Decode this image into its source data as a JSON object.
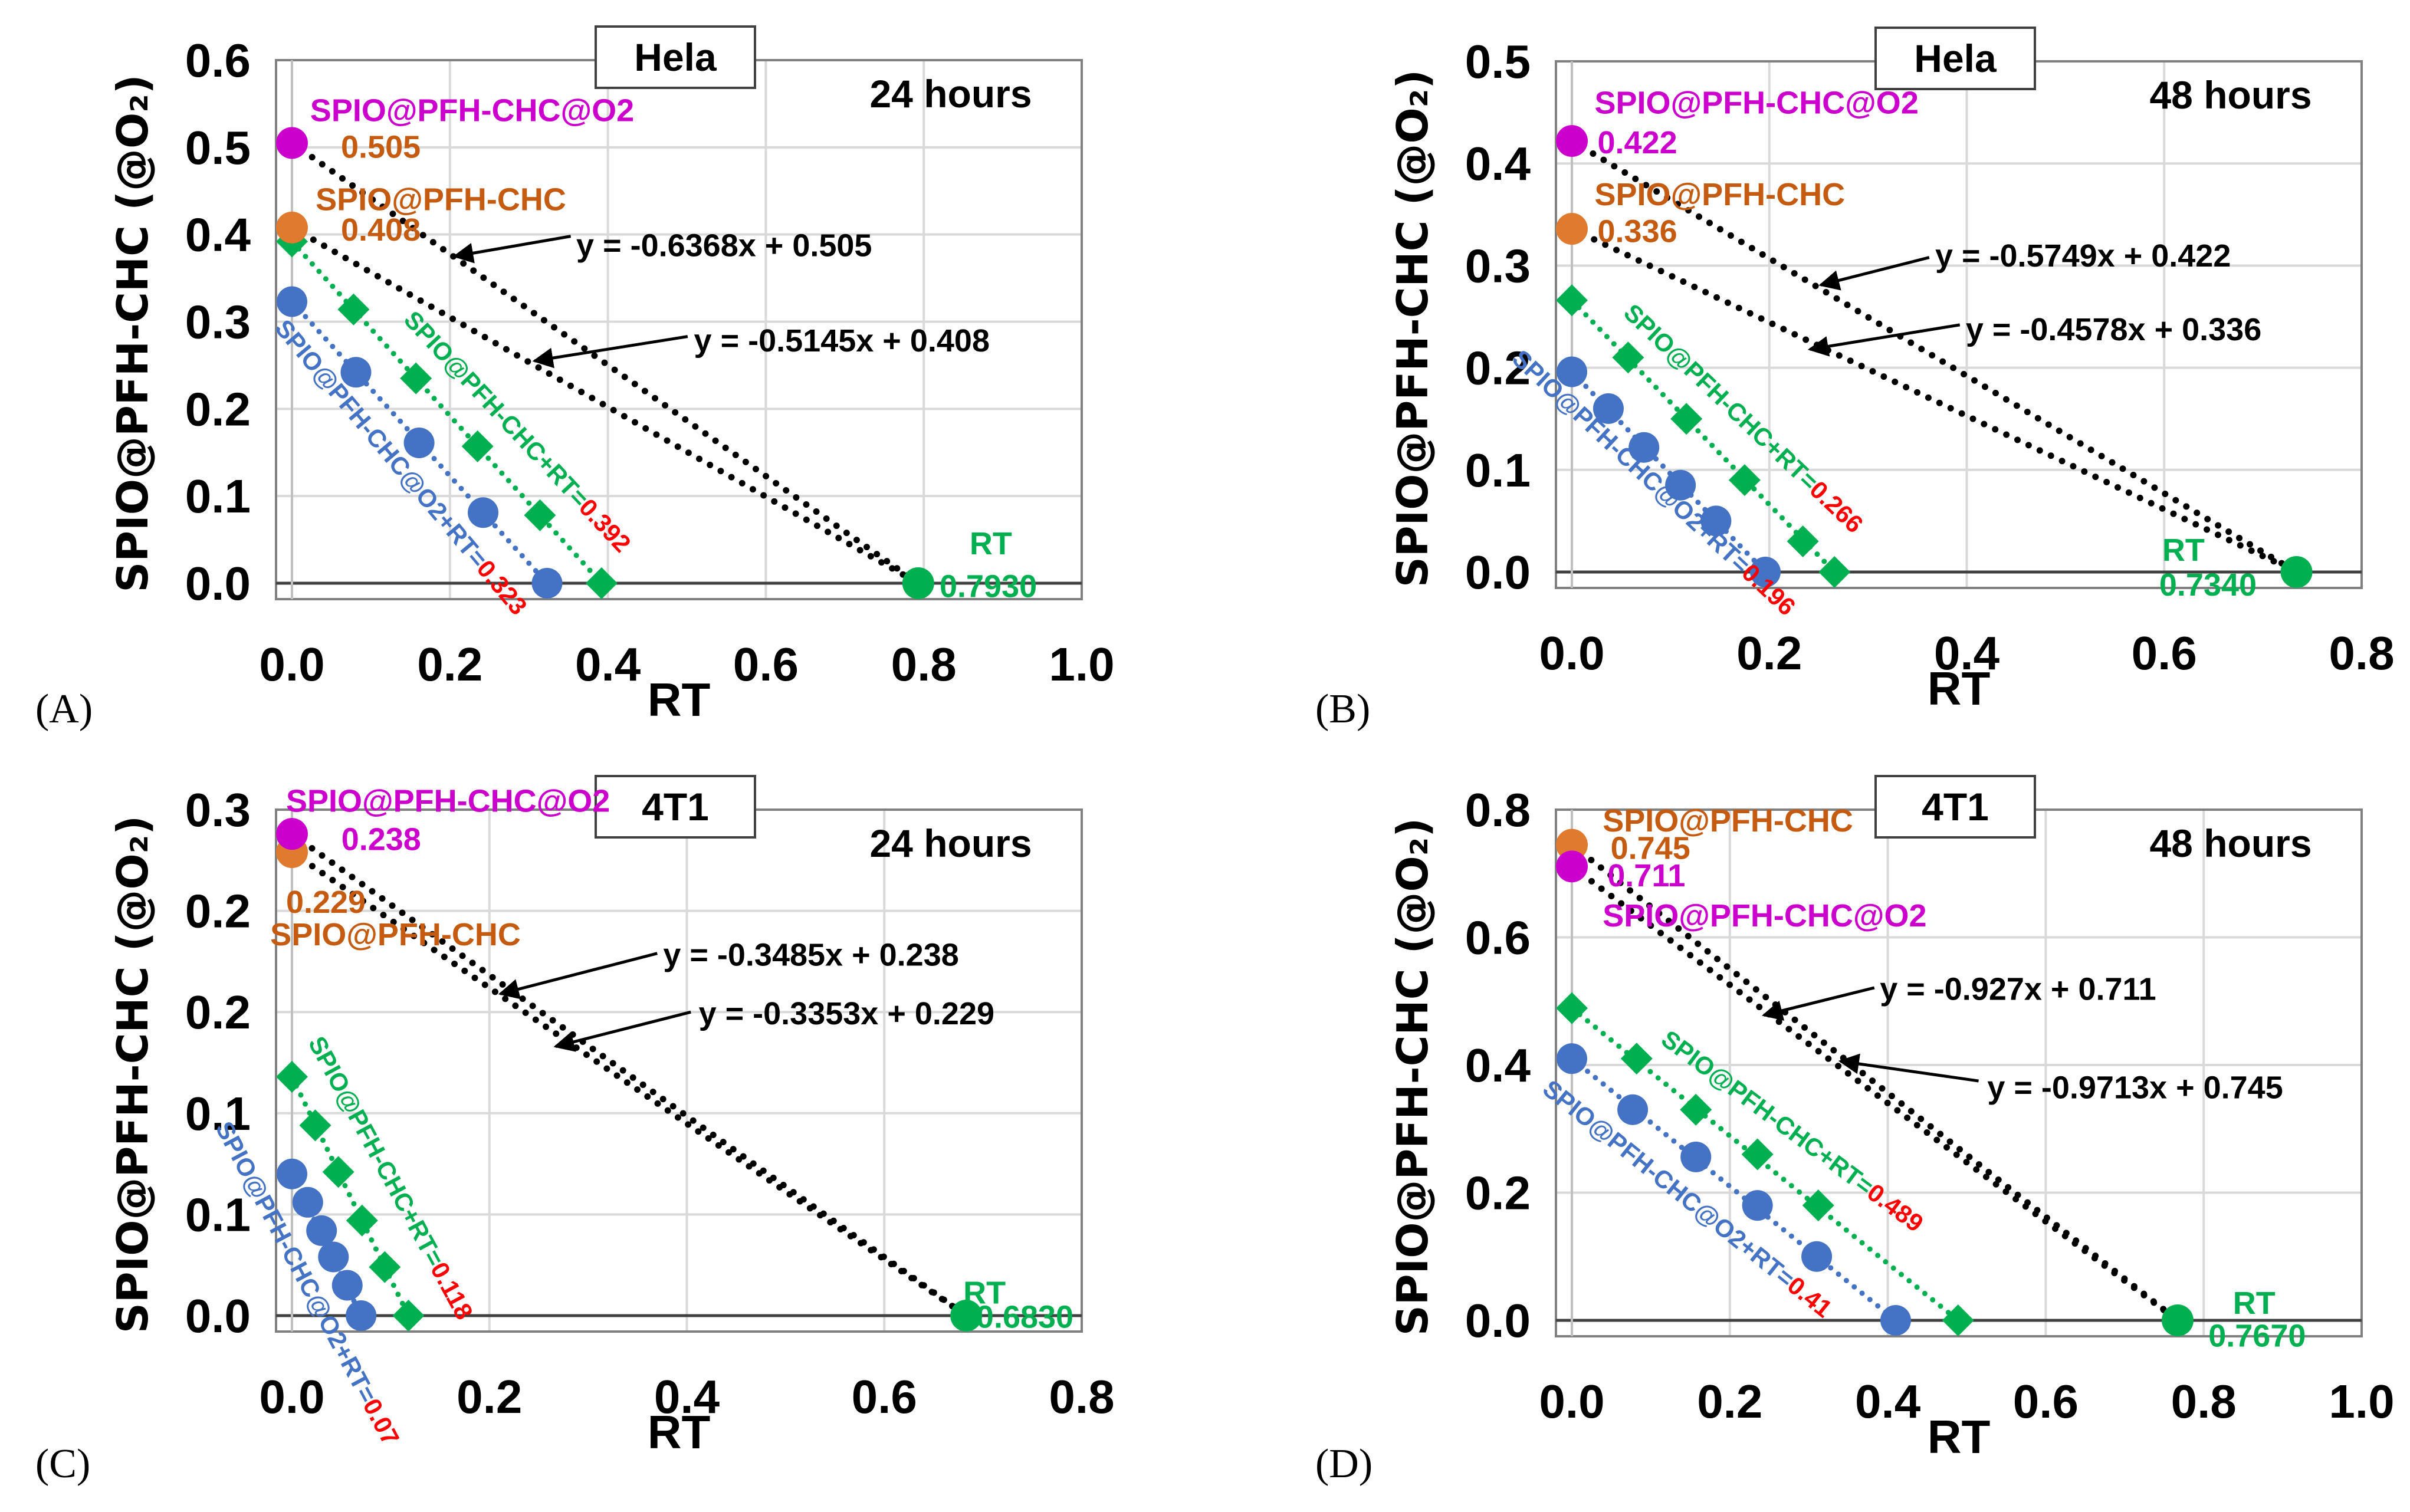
{
  "colors": {
    "o2": "#CC00CC",
    "chc": "#E07A2E",
    "chc_text": "#C55A11",
    "rt": "#00B050",
    "blue": "#4472C4",
    "green": "#00B050",
    "red": "#FF0000",
    "line": "#000000",
    "grid": "#D9D9D9"
  },
  "chart_data": [
    {
      "type": "scatter",
      "panel": "(A)",
      "cell_line": "Hela",
      "time": "24 hours",
      "xlabel": "RT",
      "ylabel": "SPIO@PFH-CHC (@O₂)",
      "xlim": [
        0,
        1.0
      ],
      "ylim": [
        0,
        0.6
      ],
      "x_ticks": [
        "0.0",
        "0.2",
        "0.4",
        "0.6",
        "0.8",
        "1.0"
      ],
      "x_tick_values": [
        0,
        0.2,
        0.4,
        0.6,
        0.8,
        1.0
      ],
      "y_ticks": [
        "0.0",
        "0.1",
        "0.2",
        "0.3",
        "0.4",
        "0.5",
        "0.6"
      ],
      "y_tick_values": [
        0,
        0.1,
        0.2,
        0.3,
        0.4,
        0.5,
        0.6
      ],
      "o2": {
        "label": "SPIO@PFH-CHC@O2",
        "value_label": "0.505",
        "y": 0.505
      },
      "chc": {
        "label": "SPIO@PFH-CHC",
        "value_label": "0.408",
        "y": 0.408
      },
      "rt": {
        "label": "RT",
        "value_label": "0.7930",
        "x": 0.793
      },
      "equations": [
        "y = -0.6368x + 0.505",
        "y = -0.5145x + 0.408"
      ],
      "combo_green": {
        "label": "SPIO@PFH-CHC+RT=",
        "value_label": "0.392",
        "x": [
          0,
          0.078,
          0.157,
          0.235,
          0.314,
          0.392
        ],
        "y": [
          0.392,
          0.314,
          0.235,
          0.157,
          0.078,
          0
        ]
      },
      "combo_blue": {
        "label": "SPIO@PFH-CHC@O2+RT=",
        "value_label": "0.323",
        "x": [
          0,
          0.081,
          0.161,
          0.242,
          0.323
        ],
        "y": [
          0.323,
          0.242,
          0.161,
          0.081,
          0
        ]
      }
    },
    {
      "type": "scatter",
      "panel": "(B)",
      "cell_line": "Hela",
      "time": "48 hours",
      "xlabel": "RT",
      "ylabel": "SPIO@PFH-CHC (@O₂)",
      "xlim": [
        0,
        0.8
      ],
      "ylim": [
        0,
        0.5
      ],
      "x_ticks": [
        "0.0",
        "0.2",
        "0.4",
        "0.6",
        "0.8"
      ],
      "x_tick_values": [
        0,
        0.2,
        0.4,
        0.6,
        0.8
      ],
      "y_ticks": [
        "0.0",
        "0.1",
        "0.2",
        "0.3",
        "0.4",
        "0.5"
      ],
      "y_tick_values": [
        0,
        0.1,
        0.2,
        0.3,
        0.4,
        0.5
      ],
      "o2": {
        "label": "SPIO@PFH-CHC@O2",
        "value_label": "0.422",
        "y": 0.422
      },
      "chc": {
        "label": "SPIO@PFH-CHC",
        "value_label": "0.336",
        "y": 0.336
      },
      "rt": {
        "label": "RT",
        "value_label": "0.7340",
        "x": 0.734
      },
      "equations": [
        "y = -0.5749x + 0.422",
        "y = -0.4578x + 0.336"
      ],
      "combo_green": {
        "label": "SPIO@PFH-CHC+RT=",
        "value_label": "0.266",
        "x": [
          0,
          0.057,
          0.116,
          0.175,
          0.234,
          0.266
        ],
        "y": [
          0.266,
          0.21,
          0.15,
          0.09,
          0.03,
          0
        ]
      },
      "combo_blue": {
        "label": "SPIO@PFH-CHC@O2+RT=",
        "value_label": "0.196",
        "x": [
          0,
          0.037,
          0.073,
          0.11,
          0.146,
          0.196
        ],
        "y": [
          0.196,
          0.16,
          0.122,
          0.085,
          0.05,
          0
        ]
      }
    },
    {
      "type": "scatter",
      "panel": "(C)",
      "cell_line": "4T1",
      "time": "24 hours",
      "xlabel": "RT",
      "ylabel": "SPIO@PFH-CHC (@O₂)",
      "xlim": [
        0,
        0.8
      ],
      "ylim": [
        0,
        0.25
      ],
      "x_ticks": [
        "0.0",
        "0.2",
        "0.4",
        "0.6",
        "0.8"
      ],
      "x_tick_values": [
        0,
        0.2,
        0.4,
        0.6,
        0.8
      ],
      "y_ticks": [
        "0.0",
        "0.1",
        "0.1",
        "0.2",
        "0.2",
        "0.3"
      ],
      "y_tick_values": [
        0,
        0.05,
        0.1,
        0.15,
        0.2,
        0.25
      ],
      "o2": {
        "label": "SPIO@PFH-CHC@O2",
        "value_label": "0.238",
        "y": 0.238
      },
      "chc": {
        "label": "SPIO@PFH-CHC",
        "value_label": "0.229",
        "y": 0.229
      },
      "rt": {
        "label": "RT",
        "value_label": "0.6830",
        "x": 0.683
      },
      "equations": [
        "y = -0.3485x + 0.238",
        "y = -0.3353x + 0.229"
      ],
      "combo_green": {
        "label": "SPIO@PFH-CHC+RT=",
        "value_label": "0.118",
        "x": [
          0,
          0.0236,
          0.047,
          0.071,
          0.094,
          0.118
        ],
        "y": [
          0.118,
          0.094,
          0.071,
          0.047,
          0.024,
          0
        ]
      },
      "combo_blue": {
        "label": "SPIO@PFH-CHC@O2+RT=",
        "value_label": "0.07",
        "x": [
          0,
          0.016,
          0.03,
          0.042,
          0.056,
          0.07
        ],
        "y": [
          0.07,
          0.056,
          0.042,
          0.029,
          0.015,
          0
        ]
      }
    },
    {
      "type": "scatter",
      "panel": "(D)",
      "cell_line": "4T1",
      "time": "48 hours",
      "xlabel": "RT",
      "ylabel": "SPIO@PFH-CHC (@O₂)",
      "xlim": [
        0,
        1.0
      ],
      "ylim": [
        0,
        0.8
      ],
      "x_ticks": [
        "0.0",
        "0.2",
        "0.4",
        "0.6",
        "0.8",
        "1.0"
      ],
      "x_tick_values": [
        0,
        0.2,
        0.4,
        0.6,
        0.8,
        1.0
      ],
      "y_ticks": [
        "0.0",
        "0.2",
        "0.4",
        "0.6",
        "0.8"
      ],
      "y_tick_values": [
        0,
        0.2,
        0.4,
        0.6,
        0.8
      ],
      "o2": {
        "label": "SPIO@PFH-CHC@O2",
        "value_label": "0.711",
        "y": 0.711
      },
      "chc": {
        "label": "SPIO@PFH-CHC",
        "value_label": "0.745",
        "y": 0.745
      },
      "rt": {
        "label": "RT",
        "value_label": "0.7670",
        "x": 0.767
      },
      "equations": [
        "y = -0.927x + 0.711",
        "y = -0.9713x + 0.745"
      ],
      "combo_green": {
        "label": "SPIO@PFH-CHC+RT=",
        "value_label": "0.489",
        "x": [
          0,
          0.082,
          0.157,
          0.235,
          0.312,
          0.489
        ],
        "y": [
          0.489,
          0.41,
          0.33,
          0.26,
          0.18,
          0
        ]
      },
      "combo_blue": {
        "label": "SPIO@PFH-CHC@O2+RT=",
        "value_label": "0.41",
        "x": [
          0,
          0.077,
          0.157,
          0.235,
          0.31,
          0.41
        ],
        "y": [
          0.41,
          0.33,
          0.256,
          0.18,
          0.1,
          0
        ]
      }
    }
  ]
}
